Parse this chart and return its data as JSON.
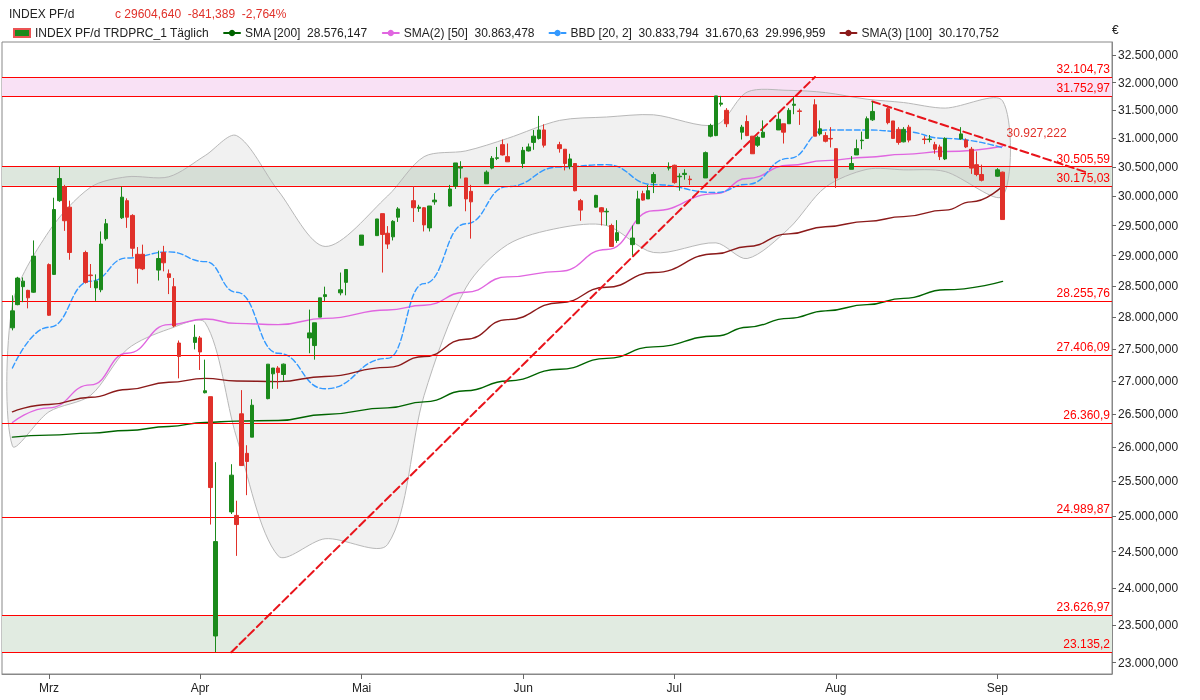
{
  "chart_data": {
    "type": "candlestick",
    "title": "INDEX PF/d",
    "subtitle": "c 29604,640  -841,389  -2,764%",
    "ylabel": "€",
    "log": "y",
    "legend": "top left",
    "xlim": [
      "--02-22",
      "--09-23"
    ],
    "xticks": [
      {
        "value": "--03-03",
        "label": "Mrz"
      },
      {
        "value": "--04-01",
        "label": "Apr"
      },
      {
        "value": "--05-02",
        "label": "Mai"
      },
      {
        "value": "--06-02",
        "label": "Jun"
      },
      {
        "value": "--07-01",
        "label": "Jul"
      },
      {
        "value": "--08-01",
        "label": "Aug"
      },
      {
        "value": "--09-01",
        "label": "Sep"
      }
    ],
    "ylim": [
      22850,
      32750
    ],
    "yticks": [
      {
        "value": 23000,
        "label": "23.000,000"
      },
      {
        "value": 23500,
        "label": "23.500,000"
      },
      {
        "value": 24000,
        "label": "24.000,000"
      },
      {
        "value": 24500,
        "label": "24.500,000"
      },
      {
        "value": 25000,
        "label": "25.000,000"
      },
      {
        "value": 25500,
        "label": "25.500,000"
      },
      {
        "value": 26000,
        "label": "26.000,000"
      },
      {
        "value": 26500,
        "label": "26.500,000"
      },
      {
        "value": 27000,
        "label": "27.000,000"
      },
      {
        "value": 27500,
        "label": "27.500,000"
      },
      {
        "value": 28000,
        "label": "28.000,000"
      },
      {
        "value": 28500,
        "label": "28.500,000"
      },
      {
        "value": 29000,
        "label": "29.000,000"
      },
      {
        "value": 29500,
        "label": "29.500,000"
      },
      {
        "value": 30000,
        "label": "30.000,000"
      },
      {
        "value": 30500,
        "label": "30.500,000"
      },
      {
        "value": 31000,
        "label": "31.000,000"
      },
      {
        "value": 31500,
        "label": "31.500,000"
      },
      {
        "value": 32000,
        "label": "32.000,000"
      },
      {
        "value": 32500,
        "label": "32.500,000"
      }
    ],
    "bands": [
      {
        "axis": "y",
        "from": 31752.97,
        "to": 32104.73,
        "color": "#f9e1f5"
      },
      {
        "axis": "y",
        "from": 30175.03,
        "to": 30505.59,
        "color": "#dde7dd"
      },
      {
        "axis": "y",
        "from": 23135.2,
        "to": 23626.97,
        "color": "#e1ebe1"
      }
    ],
    "ref_lines": [
      {
        "axis": "y",
        "value": 32104.73,
        "label": "32.104,73",
        "color": "#ff0000"
      },
      {
        "axis": "y",
        "value": 31752.97,
        "label": "31.752,97",
        "color": "#ff0000"
      },
      {
        "axis": "y",
        "value": 30505.59,
        "label": "30.505,59",
        "color": "#ff0000"
      },
      {
        "axis": "y",
        "value": 30175.03,
        "label": "30.175,03",
        "color": "#ff0000"
      },
      {
        "axis": "y",
        "value": 28255.76,
        "label": "28.255,76",
        "color": "#ff0000"
      },
      {
        "axis": "y",
        "value": 27406.09,
        "label": "27.406,09",
        "color": "#ff0000"
      },
      {
        "axis": "y",
        "value": 26360.9,
        "label": "26.360,9",
        "color": "#ff0000"
      },
      {
        "axis": "y",
        "value": 24989.87,
        "label": "24.989,87",
        "color": "#ff0000"
      },
      {
        "axis": "y",
        "value": 23626.97,
        "label": "23.626,97",
        "color": "#ff0000"
      },
      {
        "axis": "y",
        "value": 23135.2,
        "label": "23.135,2",
        "color": "#ff0000"
      }
    ],
    "annotations": [
      {
        "text": "30.927,222",
        "x": "--09-02",
        "y": 30927
      }
    ],
    "series": [
      {
        "type": "candlestick",
        "name": "INDEX PF/d TRDPRC_1 Täglich",
        "x": [
          "--02-24",
          "--02-25",
          "--02-26",
          "--02-27",
          "--02-28",
          "--03-03",
          "--03-04",
          "--03-05",
          "--03-06",
          "--03-07",
          "--03-10",
          "--03-11",
          "--03-12",
          "--03-13",
          "--03-14",
          "--03-17",
          "--03-18",
          "--03-19",
          "--03-20",
          "--03-21",
          "--03-24",
          "--03-25",
          "--03-26",
          "--03-27",
          "--03-28",
          "--03-31",
          "--04-01",
          "--04-02",
          "--04-03",
          "--04-04",
          "--04-07",
          "--04-08",
          "--04-09",
          "--04-10",
          "--04-11",
          "--04-14",
          "--04-15",
          "--04-16",
          "--04-17",
          "--04-22",
          "--04-23",
          "--04-24",
          "--04-25",
          "--04-28",
          "--04-29",
          "--05-02",
          "--05-05",
          "--05-06",
          "--05-07",
          "--05-08",
          "--05-09",
          "--05-12",
          "--05-13",
          "--05-14",
          "--05-15",
          "--05-16",
          "--05-19",
          "--05-20",
          "--05-21",
          "--05-22",
          "--05-23",
          "--05-26",
          "--05-27",
          "--05-28",
          "--05-29",
          "--05-30",
          "--06-02",
          "--06-03",
          "--06-04",
          "--06-05",
          "--06-06",
          "--06-09",
          "--06-10",
          "--06-11",
          "--06-12",
          "--06-13",
          "--06-16",
          "--06-17",
          "--06-18",
          "--06-19",
          "--06-20",
          "--06-23",
          "--06-24",
          "--06-25",
          "--06-26",
          "--06-27",
          "--06-30",
          "--07-01",
          "--07-02",
          "--07-03",
          "--07-04",
          "--07-07",
          "--07-08",
          "--07-09",
          "--07-10",
          "--07-11",
          "--07-14",
          "--07-15",
          "--07-16",
          "--07-17",
          "--07-18",
          "--07-21",
          "--07-22",
          "--07-23",
          "--07-24",
          "--07-25",
          "--07-28",
          "--07-29",
          "--07-30",
          "--07-31",
          "--08-01",
          "--08-04",
          "--08-05",
          "--08-06",
          "--08-07",
          "--08-08",
          "--08-11",
          "--08-12",
          "--08-13",
          "--08-14",
          "--08-15",
          "--08-18",
          "--08-19",
          "--08-20",
          "--08-21",
          "--08-22",
          "--08-25",
          "--08-26",
          "--08-27",
          "--08-28",
          "--08-29",
          "--09-01",
          "--09-02"
        ],
        "ohlc": [
          [
            27830,
            28350,
            27790,
            28100
          ],
          [
            28200,
            28650,
            28190,
            28630
          ],
          [
            28490,
            28640,
            28240,
            28580
          ],
          [
            28430,
            28440,
            28140,
            28310
          ],
          [
            28400,
            29250,
            28390,
            28990
          ],
          [
            28850,
            28870,
            28020,
            28030
          ],
          [
            28690,
            29970,
            28680,
            29770
          ],
          [
            29920,
            30510,
            29900,
            30300
          ],
          [
            30160,
            30190,
            29410,
            29580
          ],
          [
            29810,
            29920,
            28930,
            29050
          ],
          [
            29050,
            29080,
            28540,
            28560
          ],
          [
            28680,
            28860,
            28470,
            28670
          ],
          [
            28470,
            28690,
            28260,
            28580
          ],
          [
            28440,
            29400,
            28400,
            29190
          ],
          [
            29280,
            29610,
            29250,
            29530
          ],
          [
            29630,
            30160,
            29610,
            29980
          ],
          [
            29920,
            29960,
            29460,
            29640
          ],
          [
            29670,
            29690,
            28980,
            29120
          ],
          [
            29020,
            29140,
            28540,
            28790
          ],
          [
            29020,
            29180,
            28760,
            28780
          ],
          [
            28760,
            29080,
            28590,
            28950
          ],
          [
            29050,
            29160,
            28740,
            28880
          ],
          [
            28700,
            28770,
            28370,
            28640
          ],
          [
            28490,
            28630,
            27840,
            27860
          ],
          [
            27590,
            27630,
            27040,
            27380
          ],
          [
            27600,
            27880,
            27490,
            27680
          ],
          [
            27670,
            27700,
            27170,
            27450
          ],
          [
            26820,
            27330,
            26810,
            26850
          ],
          [
            26760,
            26760,
            24880,
            25410
          ],
          [
            23350,
            25780,
            23135,
            24640
          ],
          [
            25060,
            25750,
            25030,
            25590
          ],
          [
            25010,
            25220,
            24440,
            24880
          ],
          [
            26500,
            26860,
            25730,
            25730
          ],
          [
            25910,
            26030,
            25300,
            25790
          ],
          [
            26150,
            26720,
            26150,
            26630
          ],
          [
            26730,
            27260,
            26720,
            27260
          ],
          [
            27110,
            27200,
            26880,
            27200
          ],
          [
            27200,
            27230,
            26880,
            27130
          ],
          [
            27100,
            27270,
            27000,
            27260
          ],
          [
            27670,
            28120,
            27430,
            27750
          ],
          [
            27550,
            27910,
            27330,
            27910
          ],
          [
            28000,
            28310,
            28000,
            28310
          ],
          [
            28330,
            28490,
            28260,
            28360
          ],
          [
            28390,
            28720,
            28350,
            28440
          ],
          [
            28560,
            28770,
            28350,
            28770
          ],
          [
            29170,
            29340,
            29170,
            29340
          ],
          [
            29330,
            29610,
            29330,
            29610
          ],
          [
            29700,
            29700,
            28720,
            29350
          ],
          [
            29370,
            29490,
            29110,
            29190
          ],
          [
            29310,
            29590,
            29250,
            29570
          ],
          [
            29640,
            29810,
            29560,
            29780
          ],
          [
            29920,
            30170,
            29560,
            29800
          ],
          [
            29790,
            29850,
            29730,
            29810
          ],
          [
            29800,
            29810,
            29400,
            29510
          ],
          [
            29460,
            29830,
            29400,
            29830
          ],
          [
            29900,
            30050,
            29850,
            29930
          ],
          [
            29830,
            30190,
            29820,
            30120
          ],
          [
            30170,
            30570,
            30120,
            30570
          ],
          [
            30480,
            30600,
            30300,
            30500
          ],
          [
            30310,
            30310,
            29740,
            29950
          ],
          [
            30080,
            30190,
            29280,
            29900
          ],
          [
            30210,
            30440,
            30210,
            30410
          ],
          [
            30480,
            30690,
            30460,
            30650
          ],
          [
            30650,
            30850,
            30620,
            30660
          ],
          [
            30890,
            30980,
            30700,
            30710
          ],
          [
            30680,
            30910,
            30590,
            30590
          ],
          [
            30560,
            30850,
            30480,
            30790
          ],
          [
            30780,
            30910,
            30770,
            30850
          ],
          [
            30930,
            31150,
            30800,
            31040
          ],
          [
            31000,
            31400,
            30980,
            31150
          ],
          [
            31150,
            31250,
            30840,
            30880
          ],
          [
            30890,
            30940,
            30750,
            30820
          ],
          [
            30810,
            30810,
            30440,
            30560
          ],
          [
            30510,
            30730,
            30460,
            30640
          ],
          [
            30560,
            30560,
            30080,
            30090
          ],
          [
            29920,
            29950,
            29580,
            29760
          ],
          [
            29810,
            30020,
            29800,
            30010
          ],
          [
            29800,
            29810,
            29500,
            29730
          ],
          [
            29730,
            29790,
            29500,
            29740
          ],
          [
            29500,
            29530,
            29150,
            29150
          ],
          [
            29250,
            29590,
            29210,
            29380
          ],
          [
            29180,
            29500,
            29000,
            29290
          ],
          [
            29530,
            30090,
            29530,
            29950
          ],
          [
            30040,
            30090,
            29920,
            29930
          ],
          [
            29950,
            30190,
            29950,
            30090
          ],
          [
            30230,
            30410,
            30050,
            30370
          ],
          [
            30480,
            30580,
            30440,
            30490
          ],
          [
            30530,
            30540,
            30210,
            30230
          ],
          [
            30330,
            30390,
            30090,
            30340
          ],
          [
            30370,
            30460,
            30280,
            30390
          ],
          [
            30290,
            30350,
            30190,
            30280
          ],
          [
            30310,
            30770,
            30310,
            30750
          ],
          [
            31040,
            31260,
            31020,
            31230
          ],
          [
            31050,
            31760,
            31040,
            31760
          ],
          [
            31610,
            31760,
            31570,
            31630
          ],
          [
            31500,
            31540,
            31200,
            31260
          ],
          [
            31110,
            31240,
            30980,
            31200
          ],
          [
            31300,
            31410,
            31040,
            31050
          ],
          [
            31040,
            31040,
            30730,
            30730
          ],
          [
            30880,
            31050,
            30850,
            31020
          ],
          [
            31020,
            31320,
            31020,
            31110
          ],
          [
            31150,
            31450,
            31150,
            31340
          ],
          [
            31260,
            31260,
            30910,
            31110
          ],
          [
            31260,
            31540,
            31260,
            31500
          ],
          [
            31590,
            31740,
            31430,
            31610
          ],
          [
            31490,
            31530,
            31240,
            31480
          ],
          [
            31600,
            31700,
            31040,
            31040
          ],
          [
            31080,
            31320,
            31050,
            31170
          ],
          [
            31050,
            31110,
            30930,
            30950
          ],
          [
            31000,
            31200,
            30840,
            30990
          ],
          [
            30820,
            30820,
            30140,
            30310
          ],
          [
            30460,
            30690,
            30460,
            30560
          ],
          [
            30710,
            30980,
            30710,
            30820
          ],
          [
            30960,
            31120,
            30810,
            30970
          ],
          [
            31000,
            31390,
            31000,
            31350
          ],
          [
            31330,
            31660,
            31310,
            31480
          ],
          [
            31530,
            31590,
            31250,
            31280
          ],
          [
            31310,
            31310,
            30990,
            31000
          ],
          [
            31160,
            31200,
            30890,
            30930
          ],
          [
            30940,
            31200,
            30930,
            31160
          ],
          [
            31200,
            31240,
            30930,
            30970
          ],
          [
            30990,
            31040,
            30900,
            30980
          ],
          [
            30980,
            31060,
            30930,
            30990
          ],
          [
            30890,
            30940,
            30730,
            30810
          ],
          [
            30850,
            30890,
            30620,
            30680
          ],
          [
            30640,
            31020,
            30620,
            31000
          ],
          [
            30990,
            31200,
            30980,
            31080
          ],
          [
            30970,
            31000,
            30830,
            30850
          ],
          [
            30810,
            30850,
            30380,
            30480
          ],
          [
            30540,
            30770,
            30340,
            30370
          ],
          [
            30370,
            30540,
            30250,
            30270
          ],
          [
            30340,
            30480,
            30330,
            30450
          ],
          [
            30410,
            30420,
            29600,
            29600
          ]
        ],
        "colors": [
          "#1b8a1b",
          "#1b8a1b",
          "#1b8a1b",
          "#e0312a",
          "#1b8a1b",
          "#e0312a",
          "#1b8a1b",
          "#1b8a1b",
          "#e0312a",
          "#e0312a",
          "#e0312a",
          "#e0312a",
          "#1b8a1b",
          "#1b8a1b",
          "#1b8a1b",
          "#1b8a1b",
          "#e0312a",
          "#e0312a",
          "#e0312a",
          "#e0312a",
          "#1b8a1b",
          "#e0312a",
          "#e0312a",
          "#e0312a",
          "#e0312a",
          "#1b8a1b",
          "#e0312a",
          "#1b8a1b",
          "#e0312a",
          "#1b8a1b",
          "#1b8a1b",
          "#e0312a",
          "#e0312a",
          "#e0312a",
          "#1b8a1b",
          "#1b8a1b",
          "#1b8a1b",
          "#e0312a",
          "#1b8a1b",
          "#1b8a1b",
          "#1b8a1b",
          "#1b8a1b",
          "#1b8a1b",
          "#1b8a1b",
          "#1b8a1b",
          "#1b8a1b",
          "#1b8a1b",
          "#e0312a",
          "#e0312a",
          "#1b8a1b",
          "#1b8a1b",
          "#e0312a",
          "#1b8a1b",
          "#e0312a",
          "#1b8a1b",
          "#1b8a1b",
          "#1b8a1b",
          "#1b8a1b",
          "#1b8a1b",
          "#e0312a",
          "#e0312a",
          "#1b8a1b",
          "#1b8a1b",
          "#1b8a1b",
          "#e0312a",
          "#e0312a",
          "#1b8a1b",
          "#1b8a1b",
          "#1b8a1b",
          "#1b8a1b",
          "#e0312a",
          "#e0312a",
          "#e0312a",
          "#1b8a1b",
          "#e0312a",
          "#e0312a",
          "#1b8a1b",
          "#e0312a",
          "#1b8a1b",
          "#e0312a",
          "#1b8a1b",
          "#1b8a1b",
          "#1b8a1b",
          "#e0312a",
          "#1b8a1b",
          "#1b8a1b",
          "#1b8a1b",
          "#e0312a",
          "#1b8a1b",
          "#1b8a1b",
          "#e0312a",
          "#1b8a1b",
          "#1b8a1b",
          "#1b8a1b",
          "#1b8a1b",
          "#e0312a",
          "#1b8a1b",
          "#e0312a",
          "#e0312a",
          "#1b8a1b",
          "#1b8a1b",
          "#1b8a1b",
          "#e0312a",
          "#1b8a1b",
          "#1b8a1b",
          "#e0312a",
          "#e0312a",
          "#1b8a1b",
          "#e0312a",
          "#e0312a",
          "#e0312a",
          "#1b8a1b",
          "#1b8a1b",
          "#1b8a1b",
          "#1b8a1b",
          "#1b8a1b",
          "#e0312a",
          "#e0312a",
          "#e0312a",
          "#1b8a1b",
          "#e0312a",
          "#e0312a",
          "#1b8a1b",
          "#e0312a",
          "#e0312a",
          "#1b8a1b",
          "#1b8a1b",
          "#e0312a",
          "#e0312a",
          "#e0312a",
          "#e0312a",
          "#1b8a1b",
          "#e0312a"
        ]
      },
      {
        "type": "line",
        "name": "SMA [200]  28.576,147",
        "color": "#006400",
        "line_style": "solid",
        "x": [
          "--02-24",
          "--03-03",
          "--03-11",
          "--03-18",
          "--03-26",
          "--04-02",
          "--04-08",
          "--04-16",
          "--04-25",
          "--05-07",
          "--05-14",
          "--05-22",
          "--05-30",
          "--06-09",
          "--06-18",
          "--06-27",
          "--07-09",
          "--07-15",
          "--07-23",
          "--07-30",
          "--08-07",
          "--08-14",
          "--08-22",
          "--09-02"
        ],
        "values": [
          26150,
          26180,
          26210,
          26250,
          26310,
          26370,
          26390,
          26400,
          26490,
          26590,
          26680,
          26850,
          27000,
          27180,
          27350,
          27530,
          27700,
          27840,
          27980,
          28100,
          28200,
          28300,
          28440,
          28576
        ]
      },
      {
        "type": "line",
        "name": "SMA(2) [50]  30.863,478",
        "color": "#e066e0",
        "line_style": "solid",
        "x": [
          "--02-24",
          "--03-03",
          "--03-11",
          "--03-18",
          "--03-26",
          "--04-02",
          "--04-08",
          "--04-16",
          "--04-25",
          "--05-07",
          "--05-14",
          "--05-22",
          "--05-30",
          "--06-09",
          "--06-18",
          "--06-27",
          "--07-09",
          "--07-15",
          "--07-23",
          "--07-30",
          "--08-07",
          "--08-14",
          "--08-22",
          "--09-02"
        ],
        "values": [
          26370,
          26590,
          26940,
          27430,
          27880,
          27970,
          27900,
          27880,
          27980,
          28115,
          28190,
          28400,
          28650,
          28740,
          29100,
          29750,
          30040,
          30300,
          30530,
          30610,
          30670,
          30720,
          30770,
          30863
        ]
      },
      {
        "type": "line",
        "name": "BBD [20, 2]  30.833,794  31.670,63  29.996,959",
        "color": "#3399ff",
        "line_style": "dashed",
        "x": [
          "--02-24",
          "--03-03",
          "--03-11",
          "--03-18",
          "--03-26",
          "--04-02",
          "--04-08",
          "--04-16",
          "--04-25",
          "--05-07",
          "--05-14",
          "--05-22",
          "--05-30",
          "--06-09",
          "--06-18",
          "--06-27",
          "--07-09",
          "--07-15",
          "--07-23",
          "--07-30",
          "--08-07",
          "--08-14",
          "--08-22",
          "--09-02"
        ],
        "values": [
          27200,
          27840,
          28580,
          28960,
          29060,
          28900,
          28400,
          27430,
          26880,
          27350,
          28540,
          29530,
          30160,
          30500,
          30540,
          30195,
          30060,
          30200,
          30650,
          31150,
          31150,
          31120,
          31000,
          30834
        ],
        "upper": [
          28200,
          29400,
          30150,
          30330,
          30330,
          30700,
          31050,
          30090,
          29150,
          30000,
          30680,
          30780,
          31000,
          31320,
          31380,
          31420,
          31240,
          31830,
          31860,
          31820,
          31700,
          31640,
          31540,
          31671
        ],
        "lower": [
          26020,
          26530,
          26780,
          27490,
          27810,
          27910,
          26150,
          24440,
          24680,
          24600,
          26780,
          28470,
          29180,
          29460,
          29500,
          29050,
          29210,
          28950,
          29450,
          30150,
          30460,
          30450,
          30420,
          29997
        ]
      },
      {
        "type": "line",
        "name": "SMA(3) [100]  30.170,752",
        "color": "#8b1a1a",
        "line_style": "solid",
        "x": [
          "--02-24",
          "--03-03",
          "--03-11",
          "--03-18",
          "--03-26",
          "--04-02",
          "--04-08",
          "--04-16",
          "--04-25",
          "--05-07",
          "--05-14",
          "--05-22",
          "--05-30",
          "--06-09",
          "--06-18",
          "--06-27",
          "--07-09",
          "--07-15",
          "--07-23",
          "--07-30",
          "--08-07",
          "--08-14",
          "--08-22",
          "--08-27",
          "--09-02"
        ],
        "values": [
          26530,
          26640,
          26750,
          26870,
          26980,
          27040,
          27000,
          26990,
          27070,
          27210,
          27380,
          27650,
          27960,
          28230,
          28480,
          28720,
          29030,
          29150,
          29360,
          29480,
          29570,
          29650,
          29760,
          29900,
          30171
        ]
      },
      {
        "type": "line",
        "color": "#e8141b",
        "line_style": "dashed",
        "x": [
          "--04-07",
          "--07-28"
        ],
        "values": [
          23135,
          32104
        ]
      },
      {
        "type": "line",
        "color": "#e8141b",
        "line_style": "dashed",
        "x": [
          "--08-08",
          "--09-18"
        ],
        "values": [
          31660,
          30410
        ]
      }
    ]
  }
}
